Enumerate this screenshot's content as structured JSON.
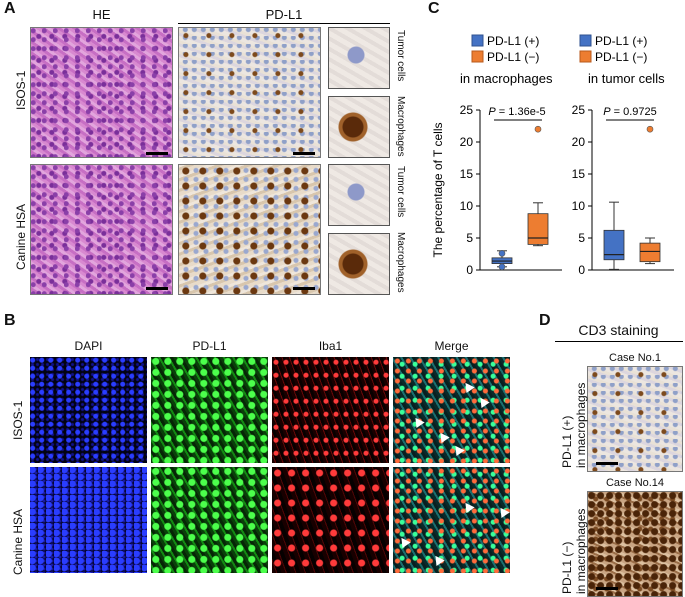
{
  "panels": {
    "A": {
      "label": "A",
      "col_he": "HE",
      "col_pdl1": "PD-L1",
      "rows": [
        "ISOS-1",
        "Canine HSA"
      ],
      "zoom_labels": [
        "Tumor cells",
        "Macrophages",
        "Tumor cells",
        "Macrophages"
      ]
    },
    "B": {
      "label": "B",
      "columns": [
        "DAPI",
        "PD-L1",
        "Iba1",
        "Merge"
      ],
      "rows": [
        "ISOS-1",
        "Canine HSA"
      ]
    },
    "C": {
      "label": "C",
      "legend_left": [
        "PD-L1 (+)",
        "PD-L1 (−)"
      ],
      "caption_left": "in macrophages",
      "legend_right": [
        "PD-L1 (+)",
        "PD-L1 (−)"
      ],
      "caption_right": "in tumor cells",
      "ylabel": "The percentage of T cells",
      "p_left_prefix": "P",
      "p_left_value": " = 1.36e-5",
      "p_right_prefix": "P",
      "p_right_value": " = 0.9725",
      "colors": {
        "pos": "#4472c4",
        "neg": "#ed7d31"
      }
    },
    "D": {
      "label": "D",
      "title": "CD3 staining",
      "case1": "Case No.1",
      "case14": "Case No.14",
      "row1": [
        "PD-L1 (+)",
        "in macrophages"
      ],
      "row2": [
        "PD-L1 (−)",
        "in macrophages"
      ]
    }
  },
  "chart_data": {
    "type": "box",
    "ylabel": "The percentage of T cells",
    "ylim": [
      0,
      25
    ],
    "yticks": [
      0,
      5,
      10,
      15,
      20,
      25
    ],
    "groups": [
      {
        "caption": "in macrophages",
        "series": [
          {
            "name": "PD-L1 (+)",
            "color": "#4472c4",
            "min": 0.5,
            "q1": 1.0,
            "median": 1.4,
            "q3": 1.9,
            "max": 3.0,
            "outliers": [
              0.5,
              2.6
            ]
          },
          {
            "name": "PD-L1 (−)",
            "color": "#ed7d31",
            "min": 3.8,
            "q1": 4.0,
            "median": 5.0,
            "q3": 8.8,
            "max": 10.5,
            "outliers": [
              22.0
            ]
          }
        ]
      },
      {
        "caption": "in tumor cells",
        "series": [
          {
            "name": "PD-L1 (+)",
            "color": "#4472c4",
            "min": 0.1,
            "q1": 1.6,
            "median": 2.4,
            "q3": 6.2,
            "max": 10.6,
            "outliers": []
          },
          {
            "name": "PD-L1 (−)",
            "color": "#ed7d31",
            "min": 1.0,
            "q1": 1.3,
            "median": 2.9,
            "q3": 4.2,
            "max": 5.0,
            "outliers": [
              22.0
            ]
          }
        ]
      }
    ]
  }
}
